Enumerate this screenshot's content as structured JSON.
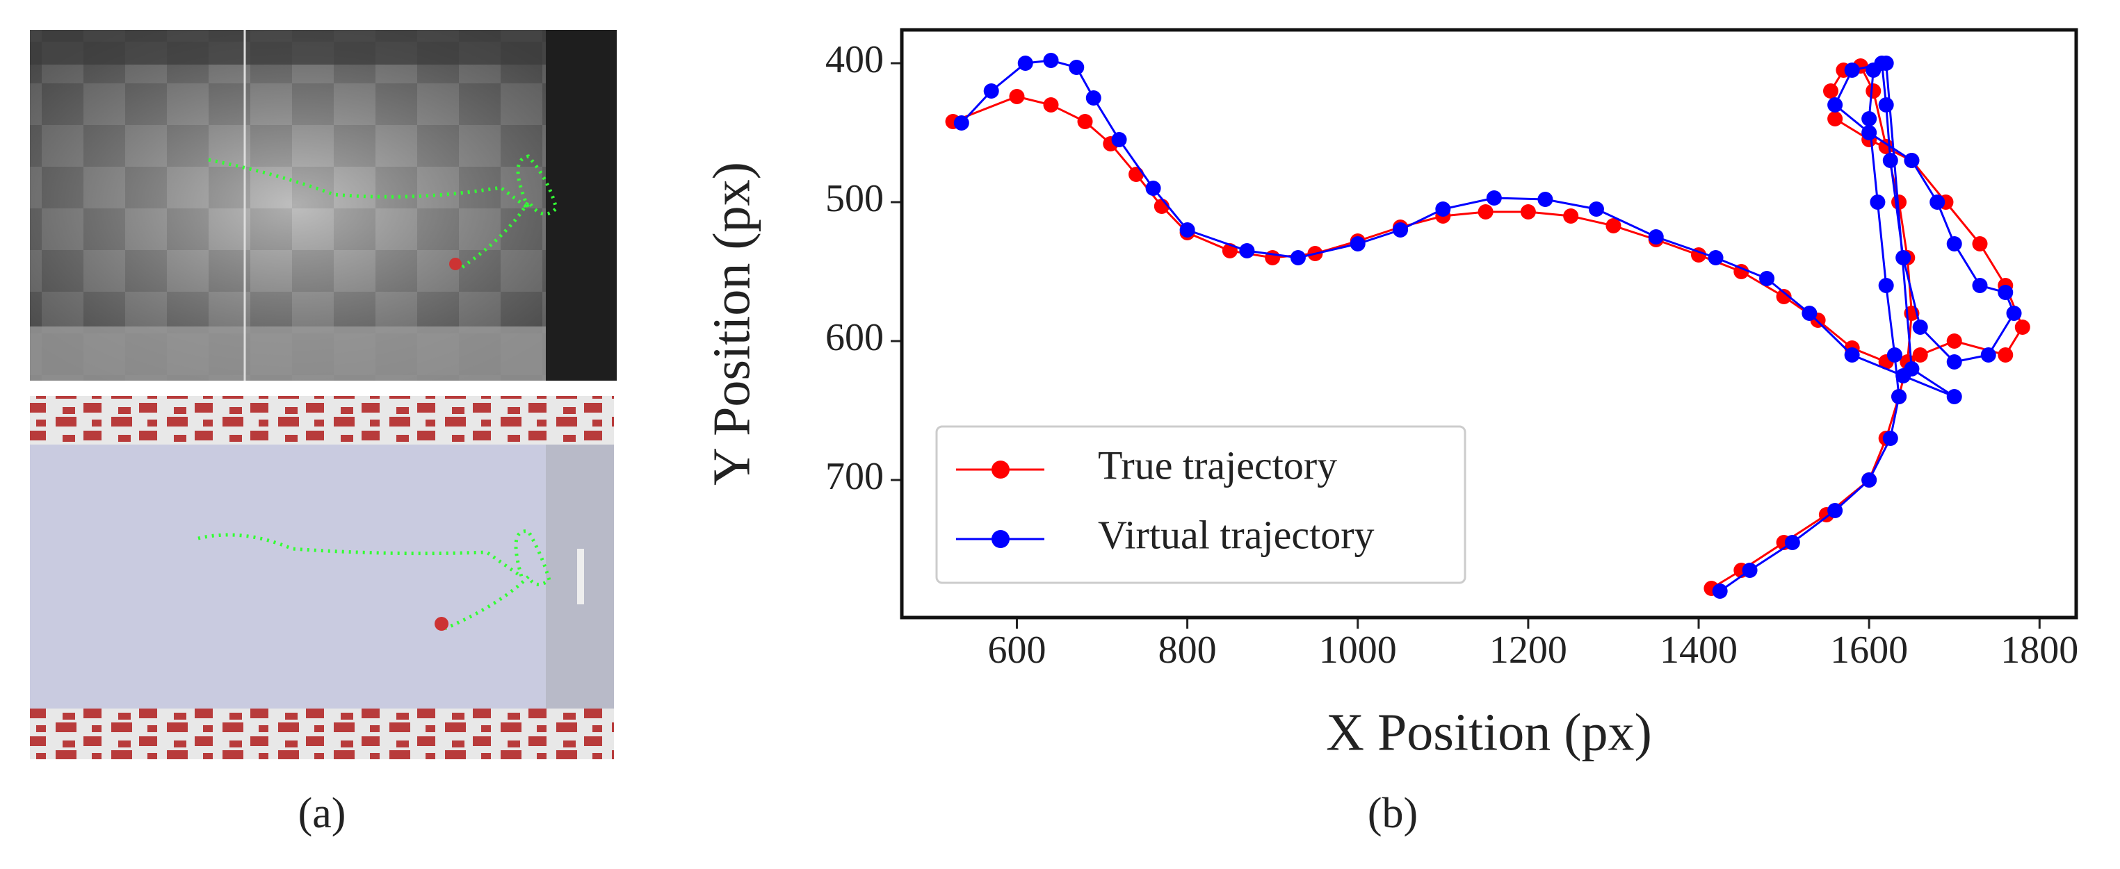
{
  "captions": [
    "(a)",
    "(b)"
  ],
  "chart_data": {
    "type": "line",
    "xlabel": "X Position (px)",
    "ylabel": "Y Position (px)",
    "xlim": [
      465,
      1843
    ],
    "ylim": [
      376,
      799
    ],
    "y_inverted": true,
    "xticks": [
      600,
      800,
      1000,
      1200,
      1400,
      1600,
      1800
    ],
    "yticks": [
      400,
      500,
      600,
      700
    ],
    "legend": "lower left",
    "series": [
      {
        "name": "True trajectory",
        "color": "#ff0000",
        "x": [
          1415,
          1450,
          1500,
          1550,
          1600,
          1620,
          1635,
          1645,
          1650,
          1645,
          1635,
          1620,
          1605,
          1590,
          1570,
          1555,
          1560,
          1600,
          1650,
          1690,
          1730,
          1760,
          1780,
          1760,
          1700,
          1660,
          1620,
          1580,
          1540,
          1500,
          1450,
          1400,
          1350,
          1300,
          1250,
          1200,
          1150,
          1100,
          1050,
          1000,
          950,
          900,
          850,
          800,
          770,
          740,
          710,
          680,
          640,
          600,
          525
        ],
        "values": [
          778,
          765,
          745,
          725,
          700,
          670,
          640,
          615,
          580,
          540,
          500,
          460,
          420,
          402,
          405,
          420,
          440,
          455,
          470,
          500,
          530,
          560,
          590,
          610,
          600,
          610,
          615,
          605,
          585,
          568,
          550,
          538,
          527,
          517,
          510,
          507,
          507,
          510,
          518,
          528,
          537,
          540,
          535,
          522,
          503,
          480,
          458,
          442,
          430,
          424,
          442
        ]
      },
      {
        "name": "Virtual trajectory",
        "color": "#0000ff",
        "x": [
          1425,
          1460,
          1510,
          1560,
          1600,
          1625,
          1635,
          1630,
          1620,
          1610,
          1600,
          1605,
          1615,
          1620,
          1625,
          1640,
          1660,
          1700,
          1740,
          1770,
          1760,
          1730,
          1700,
          1680,
          1650,
          1600,
          1560,
          1580,
          1620,
          1650,
          1700,
          1640,
          1580,
          1530,
          1480,
          1420,
          1350,
          1280,
          1220,
          1160,
          1100,
          1050,
          1000,
          930,
          870,
          800,
          760,
          720,
          690,
          670,
          640,
          610,
          570,
          535
        ],
        "values": [
          780,
          765,
          745,
          722,
          700,
          670,
          640,
          610,
          560,
          500,
          440,
          405,
          400,
          430,
          470,
          540,
          590,
          615,
          610,
          580,
          565,
          560,
          530,
          500,
          470,
          450,
          430,
          405,
          400,
          620,
          640,
          625,
          610,
          580,
          555,
          540,
          525,
          505,
          498,
          497,
          505,
          520,
          530,
          540,
          535,
          520,
          490,
          455,
          425,
          403,
          398,
          400,
          420,
          443
        ]
      }
    ]
  }
}
